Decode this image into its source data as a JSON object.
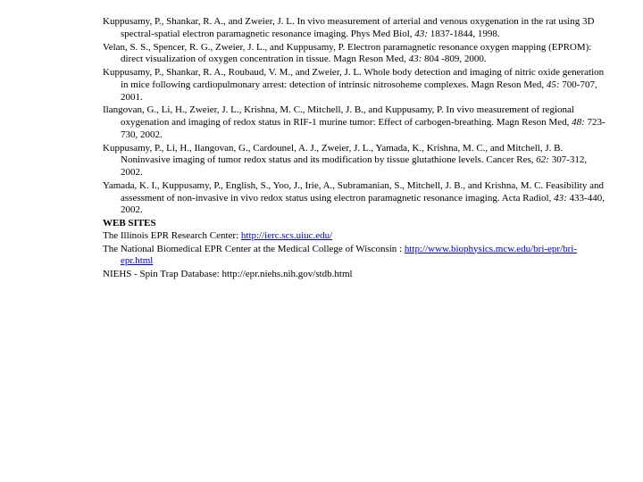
{
  "colors": {
    "text": "#000000",
    "link": "#0000d0",
    "background": "#ffffff"
  },
  "typography": {
    "font_family": "Times New Roman",
    "font_size_pt": 8.5,
    "line_height": 1.25
  },
  "references": [
    {
      "text": "Kuppusamy, P., Shankar, R. A., and Zweier, J. L. In vivo measurement of arterial and venous oxygenation in the rat using 3D spectral-spatial electron paramagnetic resonance imaging. Phys Med Biol, ",
      "journal_vol": "43:",
      "pages_year": " 1837-1844, 1998."
    },
    {
      "text": "Velan, S. S., Spencer, R. G., Zweier, J. L., and Kuppusamy, P. Electron paramagnetic resonance oxygen mapping (EPROM): direct visualization of oxygen concentration in tissue. Magn Reson Med, ",
      "journal_vol": "43:",
      "pages_year": " 804 -809, 2000."
    },
    {
      "text": "Kuppusamy, P., Shankar, R. A., Roubaud, V. M., and Zweier, J. L. Whole body detection and imaging of nitric oxide generation in mice following cardiopulmonary arrest: detection of intrinsic nitrosoheme complexes. Magn Reson Med, ",
      "journal_vol": "45:",
      "pages_year": " 700-707, 2001."
    },
    {
      "text": "Ilangovan, G., Li, H., Zweier, J. L., Krishna, M. C., Mitchell, J. B., and Kuppusamy, P. In vivo measurement of regional oxygenation and imaging of redox status in RIF-1 murine tumor: Effect of carbogen-breathing. Magn Reson Med, ",
      "journal_vol": "48:",
      "pages_year": " 723-730, 2002."
    },
    {
      "text": "Kuppusamy, P., Li, H., Ilangovan, G., Cardounel, A. J., Zweier, J. L., Yamada, K., Krishna, M. C., and Mitchell, J. B. Noninvasive imaging of tumor redox status and its modification by tissue glutathione levels. Cancer Res, ",
      "journal_vol": "62:",
      "pages_year": " 307-312, 2002."
    },
    {
      "text": "Yamada, K. I., Kuppusamy, P., English, S., Yoo, J., Irie, A., Subramanian, S., Mitchell, J. B., and Krishna, M. C. Feasibility and assessment of non-invasive in vivo redox status using electron paramagnetic resonance imaging. Acta Radiol, ",
      "journal_vol": "43:",
      "pages_year": " 433-440, 2002."
    }
  ],
  "section_header": "WEB SITES",
  "websites": [
    {
      "prefix": "The Illinois EPR Research Center: ",
      "link_text": "http://ierc.scs.uiuc.edu/",
      "suffix": ""
    },
    {
      "prefix": "The National Biomedical EPR Center at the Medical College of Wisconsin : ",
      "link_text": "http://www.biophysics.mcw.edu/bri-epr/bri-epr.html",
      "suffix": ""
    },
    {
      "prefix": "NIEHS - Spin Trap Database: http://epr.niehs.nih.gov/stdb.html",
      "link_text": "",
      "suffix": ""
    }
  ]
}
